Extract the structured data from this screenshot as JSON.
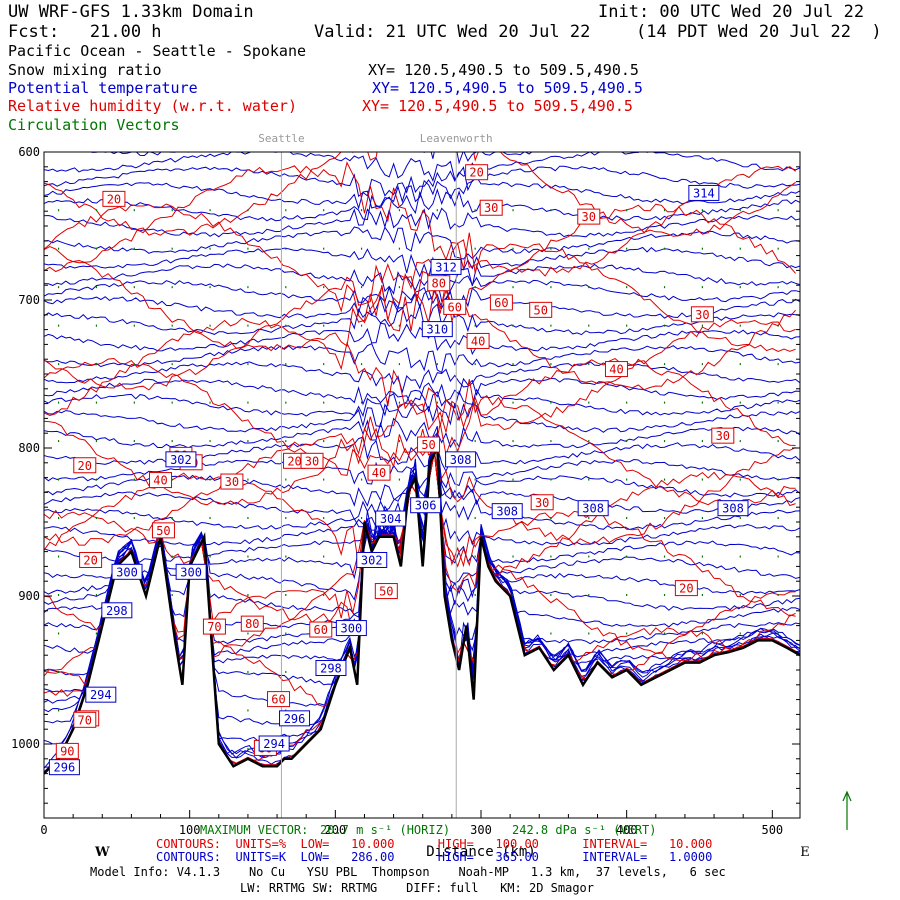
{
  "header": {
    "line1_left": "UW WRF-GFS 1.33km Domain",
    "line1_right": "Init: 00 UTC Wed 20 Jul 22",
    "line2_left": "Fcst:   21.00 h",
    "line2_mid": "Valid: 21 UTC Wed 20 Jul 22",
    "line2_right": "(14 PDT Wed 20 Jul 22  )",
    "region": "Pacific Ocean - Seattle - Spokane"
  },
  "fields": [
    {
      "name": "Snow mixing ratio",
      "xy": "XY= 120.5,490.5 to 509.5,490.5",
      "color": "#000000"
    },
    {
      "name": "Potential temperature",
      "xy": "XY= 120.5,490.5 to 509.5,490.5",
      "color": "#0000cc"
    },
    {
      "name": "Relative humidity (w.r.t. water)",
      "xy": "XY= 120.5,490.5 to 509.5,490.5",
      "color": "#dd0000"
    },
    {
      "name": "Circulation Vectors",
      "xy": "",
      "color": "#007700"
    }
  ],
  "chart_data": {
    "type": "line",
    "subtype": "vertical cross-section",
    "xlabel": "Distance (km)",
    "ylabel": "",
    "x_ticks": [
      0,
      100,
      200,
      300,
      400,
      500
    ],
    "y_ticks": [
      600,
      700,
      800,
      900,
      1000
    ],
    "xlim": [
      0,
      519
    ],
    "ylim": [
      1050,
      600
    ],
    "x_dir_left": "W",
    "x_dir_right": "E",
    "location_markers": [
      {
        "name": "Seattle",
        "x": 163
      },
      {
        "name": "Leavenworth",
        "x": 283
      }
    ],
    "terrain": {
      "name": "terrain",
      "x": [
        0,
        10,
        20,
        30,
        40,
        50,
        60,
        70,
        80,
        90,
        95,
        100,
        110,
        115,
        120,
        130,
        140,
        150,
        160,
        165,
        170,
        180,
        190,
        200,
        210,
        215,
        220,
        225,
        230,
        240,
        245,
        250,
        255,
        260,
        265,
        270,
        275,
        280,
        285,
        290,
        295,
        300,
        305,
        310,
        320,
        330,
        340,
        350,
        360,
        370,
        380,
        390,
        400,
        410,
        420,
        430,
        440,
        450,
        460,
        470,
        480,
        490,
        500,
        510,
        519
      ],
      "p": [
        1020,
        1010,
        990,
        960,
        920,
        880,
        870,
        900,
        860,
        930,
        960,
        880,
        860,
        930,
        1000,
        1015,
        1010,
        1015,
        1015,
        1010,
        1010,
        1000,
        990,
        960,
        935,
        960,
        850,
        870,
        860,
        860,
        880,
        830,
        820,
        880,
        810,
        800,
        900,
        930,
        950,
        920,
        970,
        860,
        880,
        890,
        900,
        940,
        935,
        950,
        940,
        960,
        945,
        955,
        950,
        960,
        955,
        950,
        945,
        945,
        940,
        938,
        935,
        930,
        930,
        935,
        940
      ]
    },
    "rh_contour_labels": [
      {
        "value": 20,
        "x": 48,
        "p": 632
      },
      {
        "value": 20,
        "x": 297,
        "p": 614
      },
      {
        "value": 30,
        "x": 307,
        "p": 638
      },
      {
        "value": 30,
        "x": 374,
        "p": 644
      },
      {
        "value": 80,
        "x": 271,
        "p": 689
      },
      {
        "value": 60,
        "x": 282,
        "p": 705
      },
      {
        "value": 60,
        "x": 314,
        "p": 702
      },
      {
        "value": 50,
        "x": 341,
        "p": 707
      },
      {
        "value": 30,
        "x": 452,
        "p": 710
      },
      {
        "value": 40,
        "x": 298,
        "p": 728
      },
      {
        "value": 40,
        "x": 393,
        "p": 747
      },
      {
        "value": 30,
        "x": 466,
        "p": 792
      },
      {
        "value": 20,
        "x": 28,
        "p": 812
      },
      {
        "value": 30,
        "x": 94,
        "p": 805
      },
      {
        "value": 30,
        "x": 101,
        "p": 810
      },
      {
        "value": 20,
        "x": 172,
        "p": 809
      },
      {
        "value": 30,
        "x": 184,
        "p": 809
      },
      {
        "value": 40,
        "x": 80,
        "p": 822
      },
      {
        "value": 30,
        "x": 129,
        "p": 823
      },
      {
        "value": 40,
        "x": 230,
        "p": 817
      },
      {
        "value": 50,
        "x": 264,
        "p": 798
      },
      {
        "value": 30,
        "x": 342,
        "p": 837
      },
      {
        "value": 50,
        "x": 82,
        "p": 856
      },
      {
        "value": 20,
        "x": 32,
        "p": 876
      },
      {
        "value": 50,
        "x": 235,
        "p": 897
      },
      {
        "value": 20,
        "x": 441,
        "p": 895
      },
      {
        "value": 70,
        "x": 117,
        "p": 921
      },
      {
        "value": 60,
        "x": 190,
        "p": 923
      },
      {
        "value": 80,
        "x": 143,
        "p": 919
      },
      {
        "value": 80,
        "x": 30,
        "p": 983
      },
      {
        "value": 70,
        "x": 28,
        "p": 984
      },
      {
        "value": 60,
        "x": 161,
        "p": 970
      },
      {
        "value": 60,
        "x": 152,
        "p": 1003
      },
      {
        "value": 90,
        "x": 16,
        "p": 1005
      }
    ],
    "theta_contour_labels": [
      {
        "value": 314,
        "x": 453,
        "p": 628
      },
      {
        "value": 312,
        "x": 276,
        "p": 678
      },
      {
        "value": 310,
        "x": 270,
        "p": 720
      },
      {
        "value": 308,
        "x": 286,
        "p": 808
      },
      {
        "value": 308,
        "x": 318,
        "p": 843
      },
      {
        "value": 308,
        "x": 377,
        "p": 841
      },
      {
        "value": 308,
        "x": 473,
        "p": 841
      },
      {
        "value": 306,
        "x": 262,
        "p": 839
      },
      {
        "value": 304,
        "x": 238,
        "p": 848
      },
      {
        "value": 302,
        "x": 94,
        "p": 808
      },
      {
        "value": 302,
        "x": 225,
        "p": 876
      },
      {
        "value": 300,
        "x": 57,
        "p": 884
      },
      {
        "value": 300,
        "x": 101,
        "p": 884
      },
      {
        "value": 300,
        "x": 211,
        "p": 922
      },
      {
        "value": 298,
        "x": 50,
        "p": 910
      },
      {
        "value": 298,
        "x": 197,
        "p": 949
      },
      {
        "value": 296,
        "x": 172,
        "p": 983
      },
      {
        "value": 294,
        "x": 39,
        "p": 967
      },
      {
        "value": 294,
        "x": 158,
        "p": 1000
      },
      {
        "value": 296,
        "x": 14,
        "p": 1016
      }
    ]
  },
  "footer": {
    "max_vector_label": "MAXIMUM VECTOR:",
    "max_vector_horiz": "20.7 m s⁻¹ (HORIZ)",
    "max_vector_vert": "242.8 dPa s⁻¹ (VERT)",
    "rh_contours": "CONTOURS:  UNITS=%  LOW=   10.000      HIGH=   100.00      INTERVAL=   10.000",
    "theta_contours": "CONTOURS:  UNITS=K  LOW=   286.00      HIGH=   365.00      INTERVAL=   1.0000",
    "model_info": "Model Info: V4.1.3    No Cu   YSU PBL  Thompson    Noah-MP   1.3 km,  37 levels,   6 sec",
    "model_info_2": "LW: RRTMG SW: RRTMG    DIFF: full   KM: 2D Smagor"
  }
}
